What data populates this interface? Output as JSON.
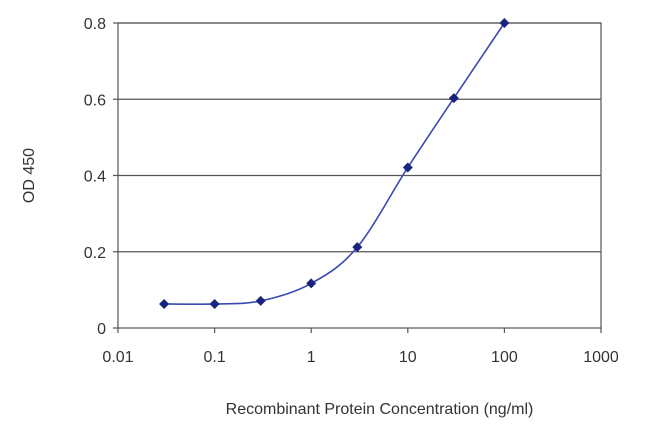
{
  "chart_data": {
    "type": "line",
    "xlabel": "Recombinant Protein Concentration (ng/ml)",
    "ylabel": "OD 450",
    "x_scale": "log",
    "xlim": [
      0.01,
      1000
    ],
    "ylim": [
      0,
      0.8
    ],
    "x_ticks": [
      "0.01",
      "0.1",
      "1",
      "10",
      "100",
      "1000"
    ],
    "y_ticks": [
      "0",
      "0.2",
      "0.4",
      "0.6",
      "0.8"
    ],
    "grid": "horizontal",
    "series": [
      {
        "x": [
          0.03,
          0.1,
          0.3,
          1,
          3,
          10,
          30,
          100
        ],
        "y": [
          0.063,
          0.063,
          0.071,
          0.117,
          0.212,
          0.421,
          0.603,
          0.8
        ]
      }
    ],
    "colors": {
      "line": "#3a49b5",
      "marker": "#1a237e",
      "grid": "#555555",
      "frame": "#555555"
    }
  }
}
